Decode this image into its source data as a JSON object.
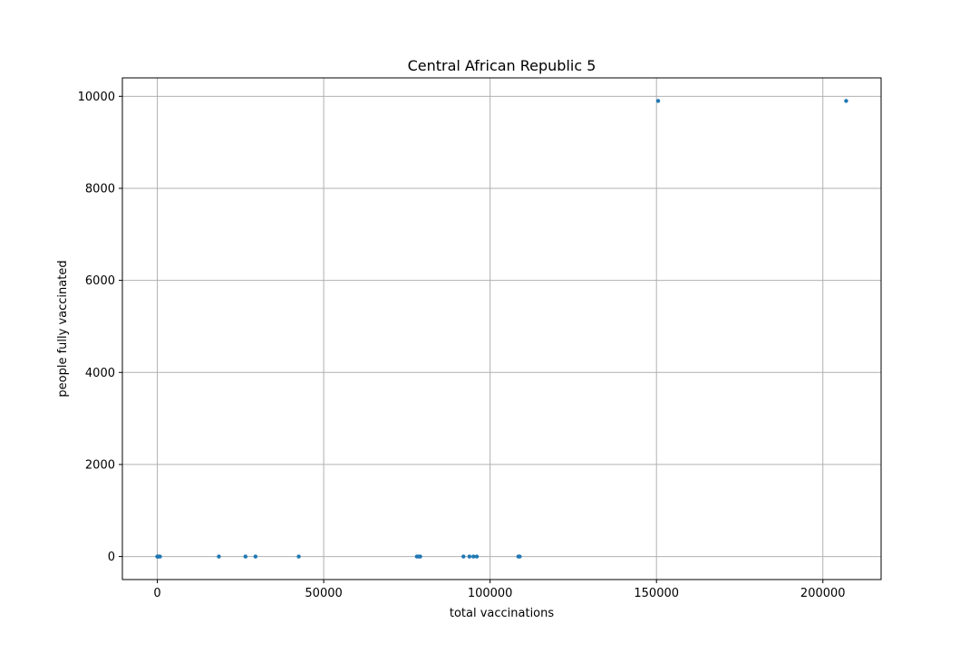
{
  "chart_data": {
    "type": "scatter",
    "title": "Central African Republic 5",
    "xlabel": "total vaccinations",
    "ylabel": "people fully vaccinated",
    "xlim": [
      -10500,
      217500
    ],
    "ylim": [
      -500,
      10400
    ],
    "xticks": [
      0,
      50000,
      100000,
      150000,
      200000
    ],
    "yticks": [
      0,
      2000,
      4000,
      6000,
      8000,
      10000
    ],
    "grid": true,
    "marker_color": "#1f77b4",
    "points": [
      {
        "x": 0,
        "y": 0
      },
      {
        "x": 200,
        "y": 0
      },
      {
        "x": 500,
        "y": 0
      },
      {
        "x": 800,
        "y": 0
      },
      {
        "x": 18500,
        "y": 0
      },
      {
        "x": 26500,
        "y": 0
      },
      {
        "x": 29500,
        "y": 0
      },
      {
        "x": 42500,
        "y": 0
      },
      {
        "x": 78000,
        "y": 0
      },
      {
        "x": 78500,
        "y": 0
      },
      {
        "x": 79000,
        "y": 0
      },
      {
        "x": 92000,
        "y": 0
      },
      {
        "x": 93800,
        "y": 0
      },
      {
        "x": 95000,
        "y": 0
      },
      {
        "x": 96000,
        "y": 0
      },
      {
        "x": 108500,
        "y": 0
      },
      {
        "x": 108900,
        "y": 0
      },
      {
        "x": 150500,
        "y": 9900
      },
      {
        "x": 207000,
        "y": 9900
      }
    ]
  }
}
